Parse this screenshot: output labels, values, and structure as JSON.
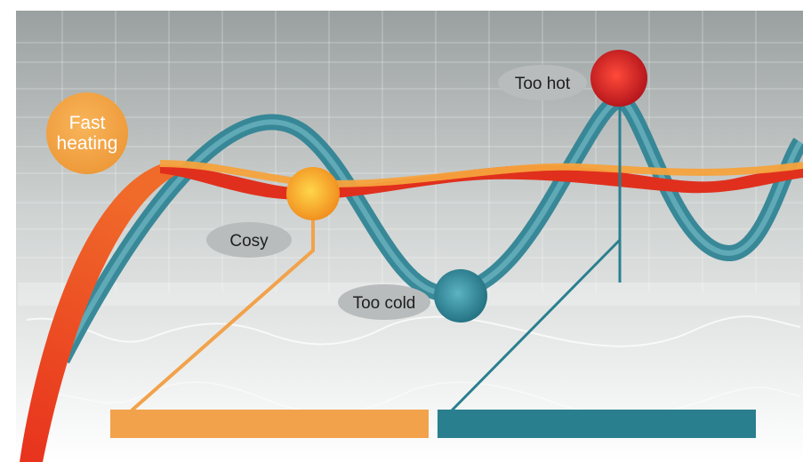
{
  "labels": {
    "fast_heating_line1": "Fast",
    "fast_heating_line2": "heating",
    "cosy": "Cosy",
    "too_cold": "Too cold",
    "too_hot": "Too hot"
  },
  "colors": {
    "background_top": "#9aa0a0",
    "background_bottom": "#ffffff",
    "orange": "#f2a24a",
    "red": "#e0251b",
    "teal": "#2a7f8f",
    "teal_light": "#5fa9b6",
    "label_pill": "#b9bcbc"
  }
}
